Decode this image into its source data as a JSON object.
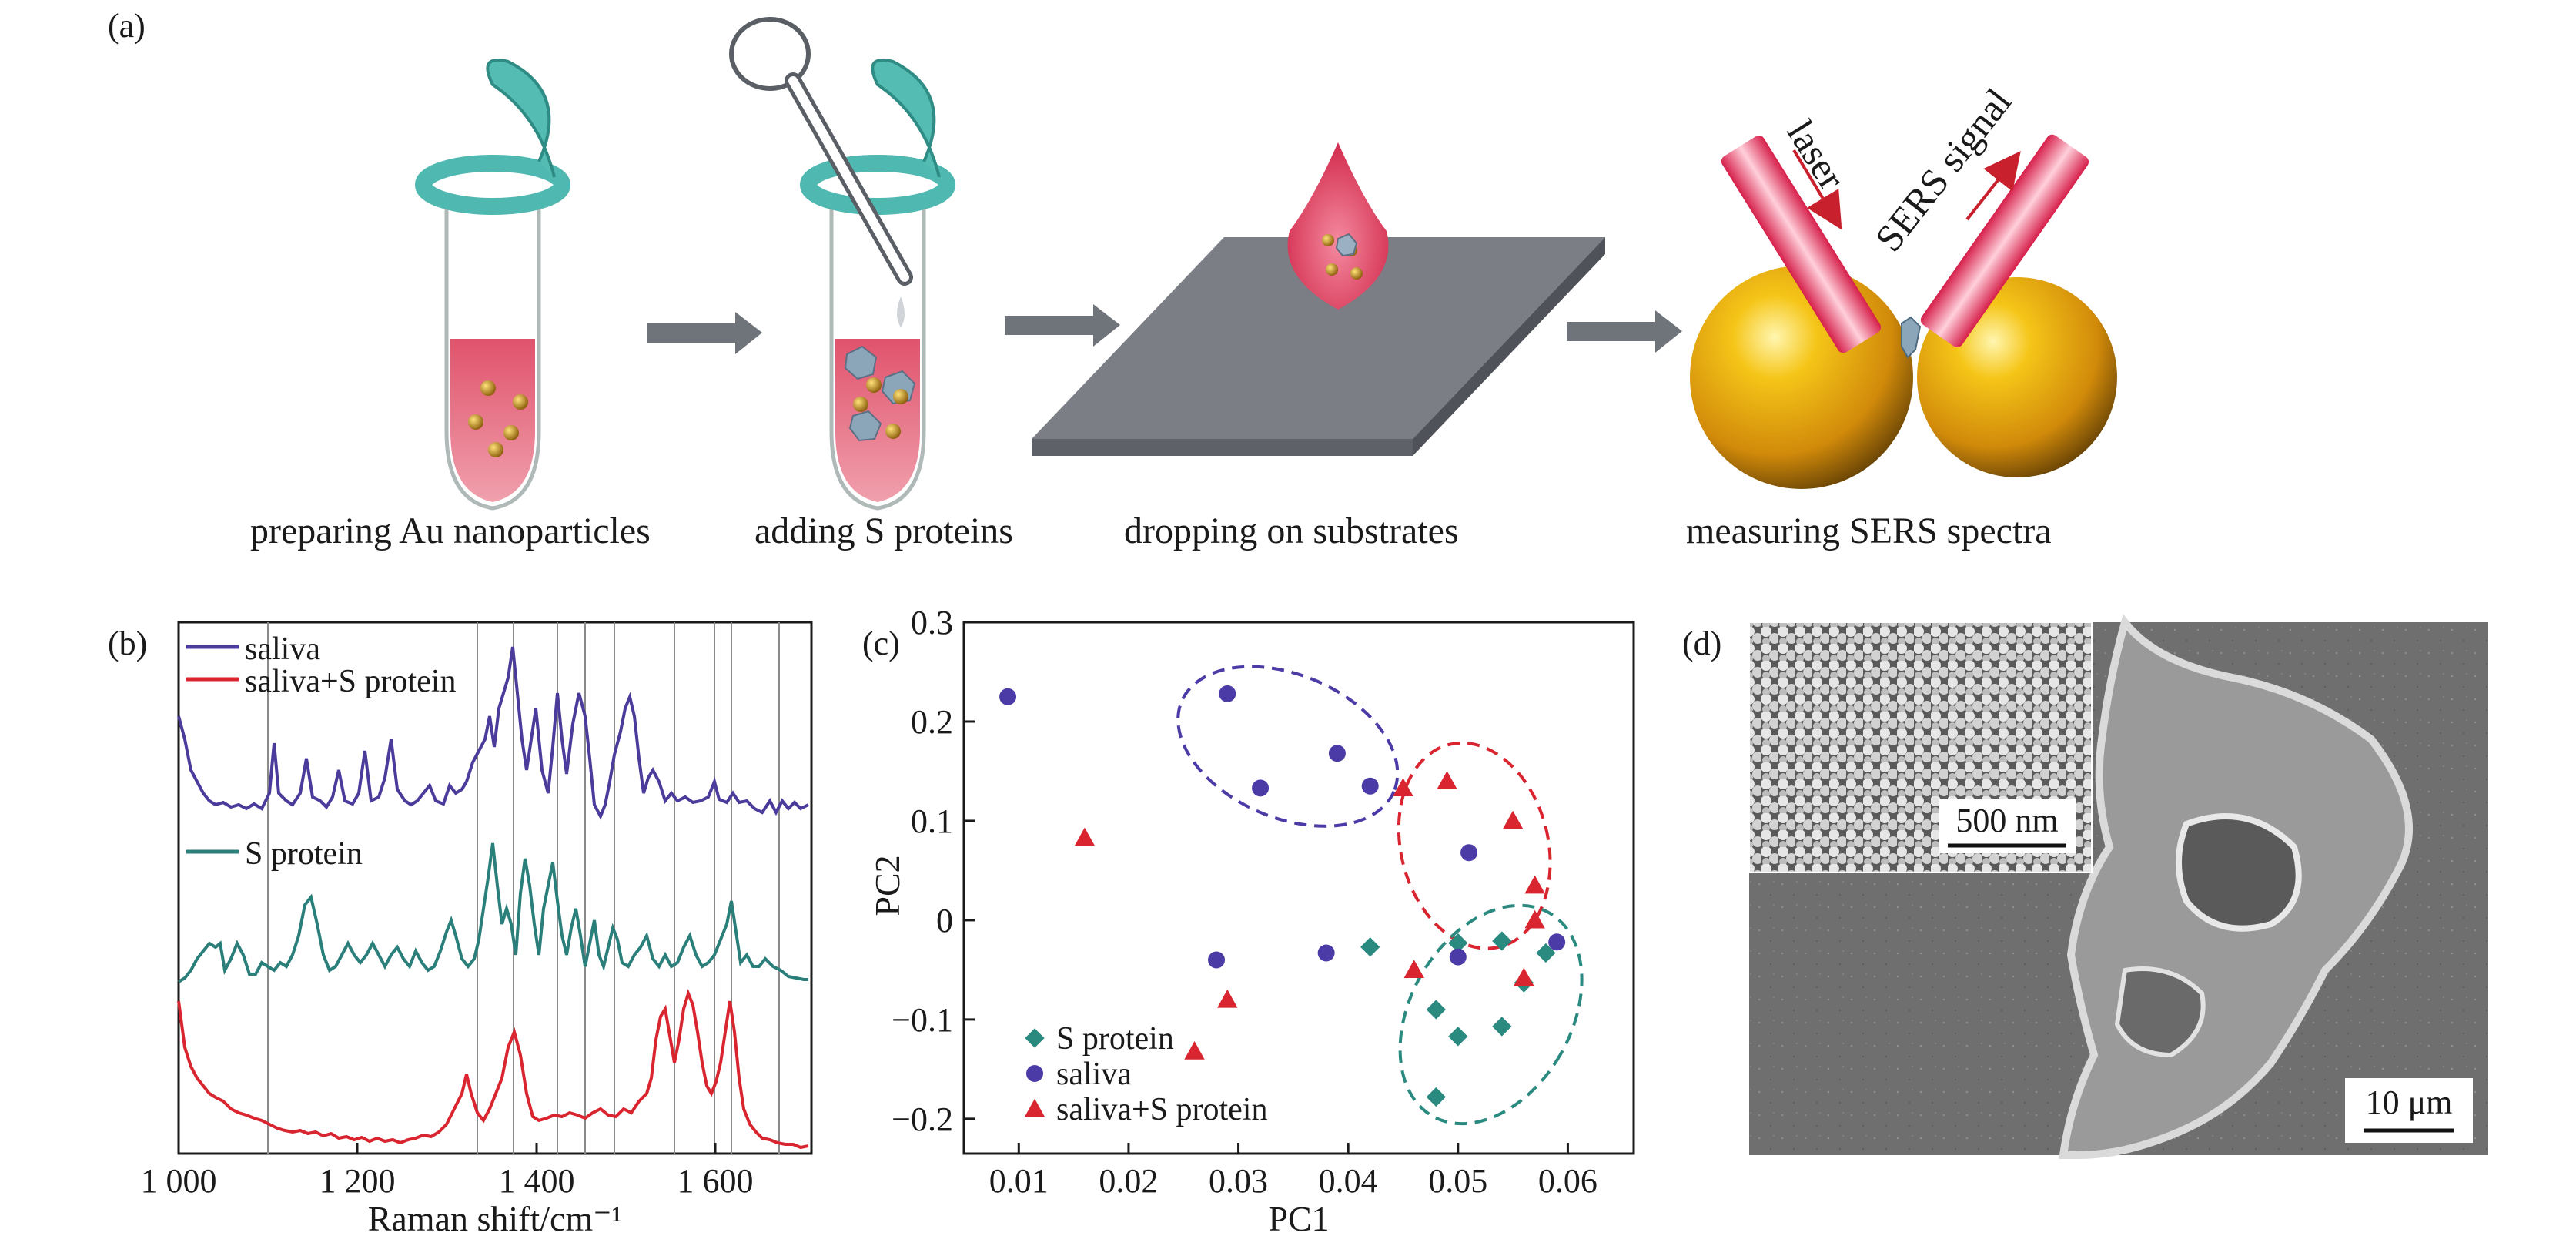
{
  "panel_labels": {
    "a": "(a)",
    "b": "(b)",
    "c": "(c)",
    "d": "(d)"
  },
  "workflow": {
    "steps": [
      "preparing Au nanoparticles",
      "adding S proteins",
      "dropping on substrates",
      "measuring SERS spectra"
    ],
    "laser_label": "laser",
    "sers_label": "SERS signal"
  },
  "spectra": {
    "legend": [
      "saliva",
      "saliva+S protein",
      "S protein"
    ],
    "x_ticks": [
      "1 000",
      "1 200",
      "1 400",
      "1 600"
    ],
    "xlabel": "Raman shift/cm⁻¹",
    "colors": {
      "saliva": "#4b3b9b",
      "saliva_s": "#d9252f",
      "s_protein": "#2a7f7a"
    }
  },
  "chart_data": {
    "type": "scatter",
    "xlabel": "PC1",
    "ylabel": "PC2",
    "xlim": [
      0.005,
      0.066
    ],
    "ylim": [
      -0.235,
      0.3
    ],
    "x_ticks": [
      0.01,
      0.02,
      0.03,
      0.04,
      0.05,
      0.06
    ],
    "y_ticks": [
      0.3,
      0.2,
      0.1,
      0,
      -0.1,
      -0.2
    ],
    "x_tick_labels": [
      "0.01",
      "0.02",
      "0.03",
      "0.04",
      "0.05",
      "0.06"
    ],
    "y_tick_labels": [
      "0.3",
      "0.2",
      "0.1",
      "0",
      "−0.1",
      "−0.2"
    ],
    "legend_position": "bottom-left",
    "series": [
      {
        "name": "S protein",
        "marker": "diamond",
        "color": "#2a8a80",
        "points": [
          [
            0.042,
            -0.027
          ],
          [
            0.05,
            -0.023
          ],
          [
            0.054,
            -0.021
          ],
          [
            0.058,
            -0.033
          ],
          [
            0.048,
            -0.09
          ],
          [
            0.05,
            -0.117
          ],
          [
            0.054,
            -0.107
          ],
          [
            0.056,
            -0.063
          ],
          [
            0.048,
            -0.178
          ]
        ]
      },
      {
        "name": "saliva",
        "marker": "circle",
        "color": "#4b3ba6",
        "points": [
          [
            0.009,
            0.225
          ],
          [
            0.029,
            0.228
          ],
          [
            0.032,
            0.133
          ],
          [
            0.039,
            0.168
          ],
          [
            0.042,
            0.135
          ],
          [
            0.051,
            0.068
          ],
          [
            0.05,
            -0.037
          ],
          [
            0.059,
            -0.022
          ],
          [
            0.038,
            -0.033
          ],
          [
            0.028,
            -0.04
          ]
        ]
      },
      {
        "name": "saliva+S protein",
        "marker": "triangle",
        "color": "#d9252f",
        "points": [
          [
            0.016,
            0.083
          ],
          [
            0.045,
            0.133
          ],
          [
            0.049,
            0.14
          ],
          [
            0.055,
            0.1
          ],
          [
            0.057,
            0.035
          ],
          [
            0.057,
            0.0
          ],
          [
            0.056,
            -0.058
          ],
          [
            0.046,
            -0.05
          ],
          [
            0.029,
            -0.08
          ],
          [
            0.026,
            -0.132
          ]
        ]
      }
    ],
    "clusters": [
      {
        "name": "saliva",
        "cx": 0.0345,
        "cy": 0.175,
        "rx": 0.0105,
        "ry": 0.072,
        "angle": 23,
        "color": "#4b3ba6"
      },
      {
        "name": "saliva+S protein",
        "cx": 0.0515,
        "cy": 0.075,
        "rx": 0.0067,
        "ry": 0.105,
        "angle": -14,
        "color": "#d9252f"
      },
      {
        "name": "S protein",
        "cx": 0.053,
        "cy": -0.095,
        "rx": 0.0073,
        "ry": 0.118,
        "angle": 30,
        "color": "#2a8a80"
      }
    ]
  },
  "sem": {
    "inset_scale": "500 nm",
    "main_scale": "10 μm"
  }
}
